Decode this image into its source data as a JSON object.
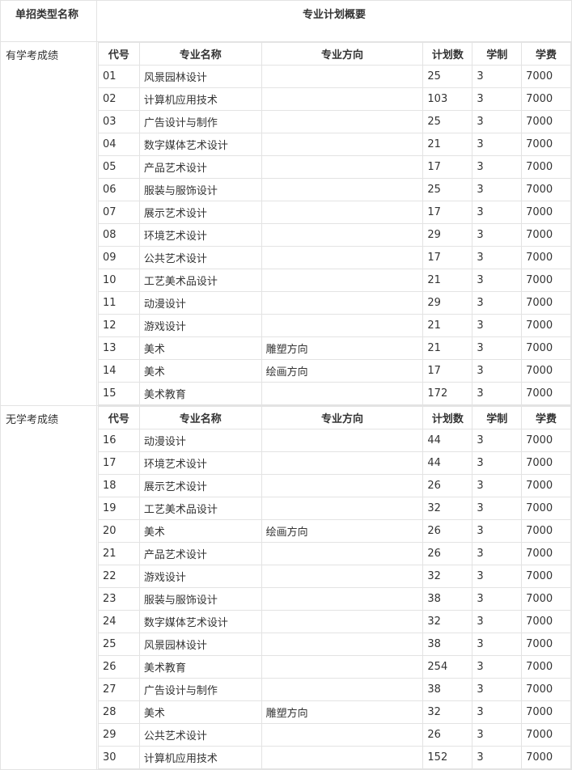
{
  "header": {
    "type_name": "单招类型名称",
    "overview": "专业计划概要"
  },
  "columns": [
    "代号",
    "专业名称",
    "专业方向",
    "计划数",
    "学制",
    "学费"
  ],
  "sections": [
    {
      "category": "有学考成绩",
      "rows": [
        [
          "01",
          "风景园林设计",
          "",
          "25",
          "3",
          "7000"
        ],
        [
          "02",
          "计算机应用技术",
          "",
          "103",
          "3",
          "7000"
        ],
        [
          "03",
          "广告设计与制作",
          "",
          "25",
          "3",
          "7000"
        ],
        [
          "04",
          "数字媒体艺术设计",
          "",
          "21",
          "3",
          "7000"
        ],
        [
          "05",
          "产品艺术设计",
          "",
          "17",
          "3",
          "7000"
        ],
        [
          "06",
          "服装与服饰设计",
          "",
          "25",
          "3",
          "7000"
        ],
        [
          "07",
          "展示艺术设计",
          "",
          "17",
          "3",
          "7000"
        ],
        [
          "08",
          "环境艺术设计",
          "",
          "29",
          "3",
          "7000"
        ],
        [
          "09",
          "公共艺术设计",
          "",
          "17",
          "3",
          "7000"
        ],
        [
          "10",
          "工艺美术品设计",
          "",
          "21",
          "3",
          "7000"
        ],
        [
          "11",
          "动漫设计",
          "",
          "29",
          "3",
          "7000"
        ],
        [
          "12",
          "游戏设计",
          "",
          "21",
          "3",
          "7000"
        ],
        [
          "13",
          "美术",
          "雕塑方向",
          "21",
          "3",
          "7000"
        ],
        [
          "14",
          "美术",
          "绘画方向",
          "17",
          "3",
          "7000"
        ],
        [
          "15",
          "美术教育",
          "",
          "172",
          "3",
          "7000"
        ]
      ]
    },
    {
      "category": "无学考成绩",
      "rows": [
        [
          "16",
          "动漫设计",
          "",
          "44",
          "3",
          "7000"
        ],
        [
          "17",
          "环境艺术设计",
          "",
          "44",
          "3",
          "7000"
        ],
        [
          "18",
          "展示艺术设计",
          "",
          "26",
          "3",
          "7000"
        ],
        [
          "19",
          "工艺美术品设计",
          "",
          "32",
          "3",
          "7000"
        ],
        [
          "20",
          "美术",
          "绘画方向",
          "26",
          "3",
          "7000"
        ],
        [
          "21",
          "产品艺术设计",
          "",
          "26",
          "3",
          "7000"
        ],
        [
          "22",
          "游戏设计",
          "",
          "32",
          "3",
          "7000"
        ],
        [
          "23",
          "服装与服饰设计",
          "",
          "38",
          "3",
          "7000"
        ],
        [
          "24",
          "数字媒体艺术设计",
          "",
          "32",
          "3",
          "7000"
        ],
        [
          "25",
          "风景园林设计",
          "",
          "38",
          "3",
          "7000"
        ],
        [
          "26",
          "美术教育",
          "",
          "254",
          "3",
          "7000"
        ],
        [
          "27",
          "广告设计与制作",
          "",
          "38",
          "3",
          "7000"
        ],
        [
          "28",
          "美术",
          "雕塑方向",
          "32",
          "3",
          "7000"
        ],
        [
          "29",
          "公共艺术设计",
          "",
          "26",
          "3",
          "7000"
        ],
        [
          "30",
          "计算机应用技术",
          "",
          "152",
          "3",
          "7000"
        ]
      ]
    }
  ]
}
